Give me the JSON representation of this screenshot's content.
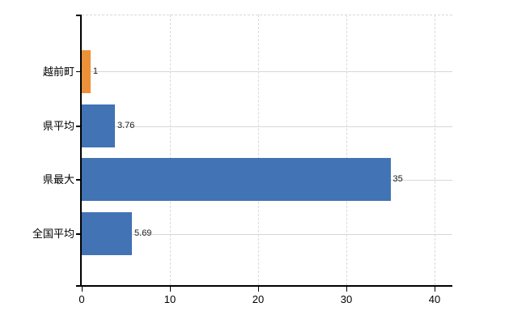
{
  "chart_data": {
    "type": "bar",
    "orientation": "horizontal",
    "title": "",
    "categories": [
      "越前町",
      "県平均",
      "県最大",
      "全国平均"
    ],
    "values": [
      1,
      3.76,
      35,
      5.69
    ],
    "value_labels": [
      "1",
      "3.76",
      "35",
      "5.69"
    ],
    "bar_colors": [
      "#EC9139",
      "#4273B4",
      "#4273B4",
      "#4273B4"
    ],
    "highlight_color": "#EC9139",
    "default_color": "#4273B4",
    "x_ticks": [
      "0",
      "10",
      "20",
      "30",
      "40"
    ],
    "x_tick_values": [
      0,
      10,
      20,
      30,
      40
    ],
    "xlim": [
      0,
      42
    ],
    "xlabel": "",
    "ylabel": "",
    "legend": null,
    "grid": true,
    "axis_color": "#000000",
    "gridline_color": "#d9d9d9",
    "background_color": "#ffffff"
  }
}
